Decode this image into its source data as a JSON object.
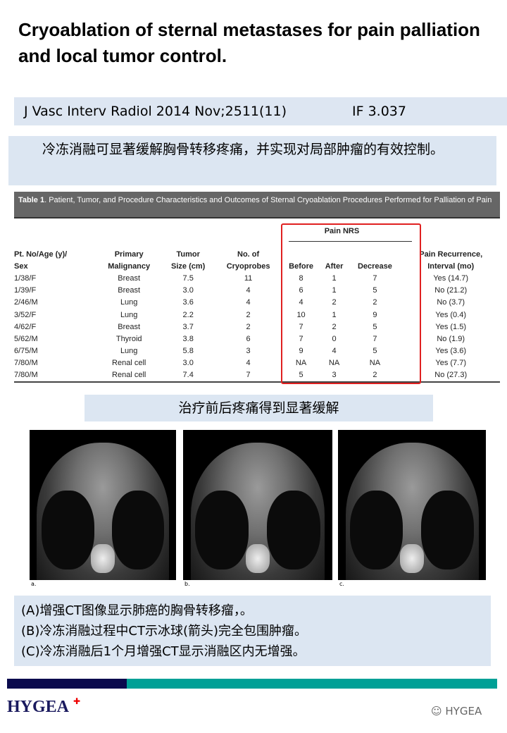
{
  "title": "Cryoablation of sternal metastases for pain palliation and local tumor control.",
  "journal": {
    "citation": "J Vasc Interv Radiol 2014 Nov;2511(11)",
    "impact_factor": "IF 3.037"
  },
  "summary_cn": "冷冻消融可显著缓解胸骨转移疼痛，并实现对局部肿瘤的有效控制。",
  "table": {
    "caption_label": "Table 1",
    "caption": ". Patient, Tumor, and Procedure Characteristics and Outcomes of Sternal Cryoablation Procedures Performed for Palliation of Pain",
    "group_header": "Pain NRS",
    "headers": [
      [
        "Pt. No/Age (y)/",
        "Sex"
      ],
      [
        "Primary",
        "Malignancy"
      ],
      [
        "Tumor",
        "Size (cm)"
      ],
      [
        "No. of",
        "Cryoprobes"
      ],
      [
        "",
        "Before"
      ],
      [
        "",
        "After"
      ],
      [
        "",
        "Decrease"
      ],
      [
        "Pain Recurrence,",
        "Interval (mo)"
      ]
    ],
    "rows": [
      [
        "1/38/F",
        "Breast",
        "7.5",
        "11",
        "8",
        "1",
        "7",
        "Yes (14.7)"
      ],
      [
        "1/39/F",
        "Breast",
        "3.0",
        "4",
        "6",
        "1",
        "5",
        "No (21.2)"
      ],
      [
        "2/46/M",
        "Lung",
        "3.6",
        "4",
        "4",
        "2",
        "2",
        "No (3.7)"
      ],
      [
        "3/52/F",
        "Lung",
        "2.2",
        "2",
        "10",
        "1",
        "9",
        "Yes (0.4)"
      ],
      [
        "4/62/F",
        "Breast",
        "3.7",
        "2",
        "7",
        "2",
        "5",
        "Yes (1.5)"
      ],
      [
        "5/62/M",
        "Thyroid",
        "3.8",
        "6",
        "7",
        "0",
        "7",
        "No (1.9)"
      ],
      [
        "6/75/M",
        "Lung",
        "5.8",
        "3",
        "9",
        "4",
        "5",
        "Yes (3.6)"
      ],
      [
        "7/80/M",
        "Renal cell",
        "3.0",
        "4",
        "NA",
        "NA",
        "NA",
        "Yes (7.7)"
      ],
      [
        "7/80/M",
        "Renal cell",
        "7.4",
        "7",
        "5",
        "3",
        "2",
        "No (27.3)"
      ]
    ],
    "highlight_color": "#e02020"
  },
  "subtitle_cn": "治疗前后疼痛得到显著缓解",
  "images": [
    {
      "label": "a."
    },
    {
      "label": "b."
    },
    {
      "label": "c."
    }
  ],
  "captions": [
    "(A)增强CT图像显示肺癌的胸骨转移瘤，。",
    "(B)冷冻消融过程中CT示冰球(箭头)完全包围肿瘤。",
    "(C)冷冻消融后1个月增强CT显示消融区内无增强。"
  ],
  "footer": {
    "logo": "HYGEA",
    "watermark": "HYGEA",
    "colors": {
      "navy": "#0b0a4d",
      "teal": "#00a096"
    }
  }
}
